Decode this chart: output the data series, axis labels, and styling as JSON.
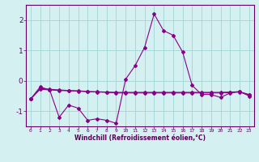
{
  "xlabel": "Windchill (Refroidissement éolien,°C)",
  "background_color": "#d4f0f0",
  "grid_color": "#a8d8d8",
  "line_color": "#880088",
  "x_hours": [
    0,
    1,
    2,
    3,
    4,
    5,
    6,
    7,
    8,
    9,
    10,
    11,
    12,
    13,
    14,
    15,
    16,
    17,
    18,
    19,
    20,
    21,
    22,
    23
  ],
  "series1": [
    -0.6,
    -0.2,
    -0.3,
    -1.2,
    -0.8,
    -0.9,
    -1.3,
    -1.25,
    -1.3,
    -1.4,
    0.05,
    0.5,
    1.1,
    2.2,
    1.65,
    1.5,
    0.95,
    -0.15,
    -0.45,
    -0.45,
    -0.55,
    -0.4,
    -0.35,
    -0.5
  ],
  "series2": [
    -0.6,
    -0.25,
    -0.28,
    -0.3,
    -0.32,
    -0.33,
    -0.35,
    -0.36,
    -0.37,
    -0.38,
    -0.38,
    -0.38,
    -0.38,
    -0.38,
    -0.38,
    -0.38,
    -0.38,
    -0.38,
    -0.38,
    -0.38,
    -0.38,
    -0.37,
    -0.36,
    -0.45
  ],
  "series3": [
    -0.6,
    -0.28,
    -0.3,
    -0.32,
    -0.33,
    -0.34,
    -0.36,
    -0.37,
    -0.38,
    -0.4,
    -0.4,
    -0.4,
    -0.4,
    -0.4,
    -0.4,
    -0.4,
    -0.4,
    -0.4,
    -0.4,
    -0.4,
    -0.4,
    -0.39,
    -0.37,
    -0.47
  ],
  "ylim": [
    -1.5,
    2.5
  ],
  "yticks": [
    -1,
    0,
    1,
    2
  ],
  "xticks": [
    0,
    1,
    2,
    3,
    4,
    5,
    6,
    7,
    8,
    9,
    10,
    11,
    12,
    13,
    14,
    15,
    16,
    17,
    18,
    19,
    20,
    21,
    22,
    23
  ]
}
